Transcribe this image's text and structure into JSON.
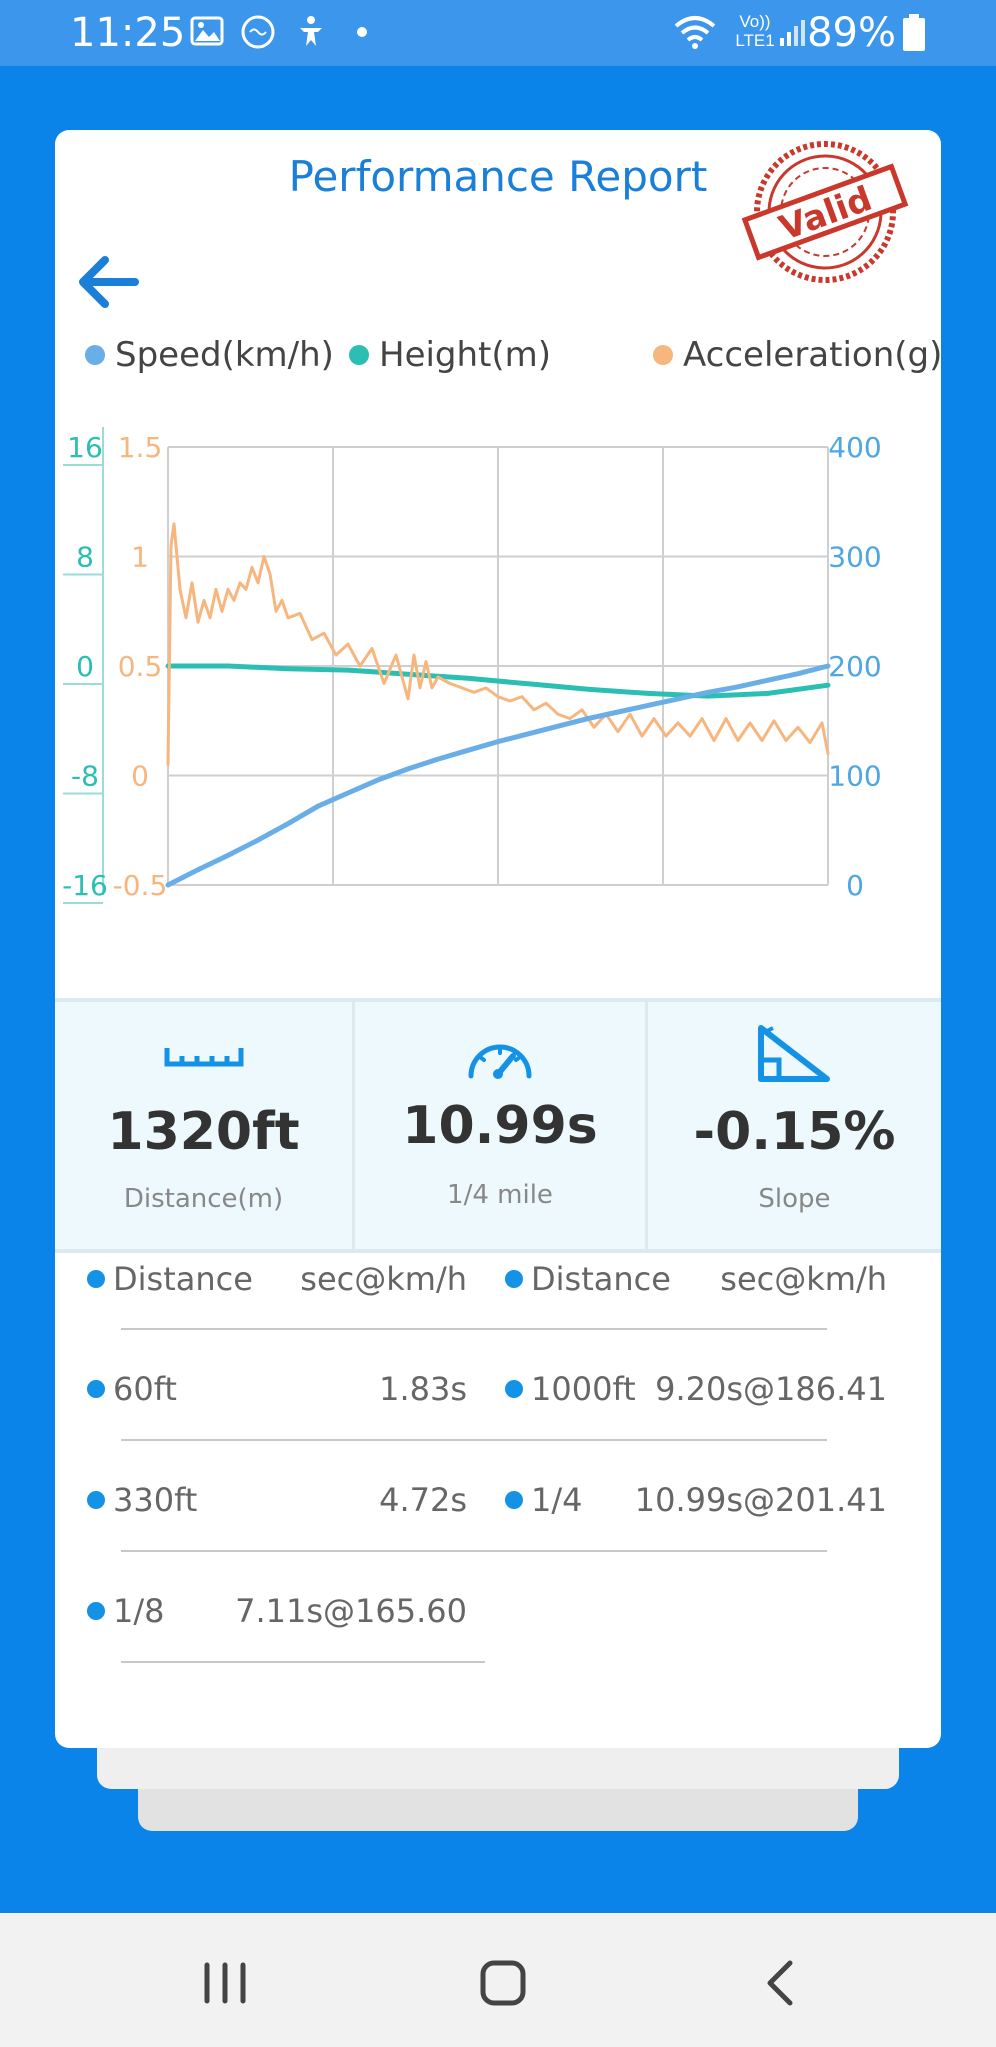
{
  "status": {
    "time": "11:25",
    "battery": "89%",
    "icons": [
      "gallery-icon",
      "sync-icon",
      "accessibility-icon",
      "dot-icon",
      "wifi-icon",
      "volte-icon",
      "signal-icon",
      "battery-icon"
    ],
    "volte_label": "Vo))",
    "lte_label": "LTE1"
  },
  "report": {
    "title": "Performance Report",
    "stamp_text": "Valid",
    "stamp_color": "#c9382b"
  },
  "legend": [
    {
      "label": "Speed(km/h)",
      "color": "#6aaee8"
    },
    {
      "label": "Height(m)",
      "color": "#2bbfb3"
    },
    {
      "label": "Acceleration(g)",
      "color": "#f7b67e"
    }
  ],
  "chart_data": {
    "type": "line",
    "left_axis_height": {
      "ticks": [
        "16",
        "8",
        "0",
        "-8",
        "-16"
      ],
      "range": [
        -16,
        16
      ],
      "color": "#2bbfb3"
    },
    "left_axis_accel": {
      "ticks": [
        "1.5",
        "1",
        "0.5",
        "0",
        "-0.5"
      ],
      "range": [
        -0.5,
        1.5
      ],
      "color": "#f7b67e"
    },
    "right_axis_speed": {
      "ticks": [
        "400",
        "300",
        "200",
        "100",
        "0"
      ],
      "range": [
        0,
        400
      ],
      "color": "#4ea6e3"
    },
    "x_range": [
      0,
      11
    ],
    "grid": true,
    "series": [
      {
        "name": "Speed(km/h)",
        "axis": "speed",
        "color": "#6aaee8",
        "x": [
          0,
          0.5,
          1,
          1.5,
          2,
          2.5,
          3,
          3.5,
          4,
          4.5,
          5,
          5.5,
          6,
          6.5,
          7,
          7.5,
          8,
          8.5,
          9,
          9.5,
          10,
          10.5,
          11
        ],
        "y": [
          0,
          14,
          27,
          41,
          56,
          72,
          84,
          96,
          106,
          115,
          123,
          131,
          138,
          145,
          152,
          158,
          164,
          170,
          176,
          181,
          187,
          193,
          200
        ]
      },
      {
        "name": "Height(m)",
        "axis": "height",
        "color": "#2bbfb3",
        "x": [
          0,
          1,
          2,
          3,
          4,
          5,
          6,
          7,
          8,
          9,
          10,
          11
        ],
        "y": [
          0,
          0,
          -0.2,
          -0.3,
          -0.6,
          -0.9,
          -1.3,
          -1.7,
          -2.0,
          -2.2,
          -2.0,
          -1.4
        ]
      },
      {
        "name": "Acceleration(g)",
        "axis": "accel",
        "color": "#f7b67e",
        "x": [
          0,
          0.05,
          0.1,
          0.2,
          0.3,
          0.4,
          0.5,
          0.6,
          0.7,
          0.8,
          0.9,
          1.0,
          1.1,
          1.2,
          1.3,
          1.4,
          1.5,
          1.6,
          1.7,
          1.8,
          1.9,
          2.0,
          2.2,
          2.4,
          2.6,
          2.8,
          3.0,
          3.2,
          3.4,
          3.6,
          3.8,
          4.0,
          4.1,
          4.2,
          4.3,
          4.4,
          4.5,
          4.7,
          4.9,
          5.1,
          5.3,
          5.5,
          5.7,
          5.9,
          6.1,
          6.3,
          6.5,
          6.7,
          6.9,
          7.1,
          7.3,
          7.5,
          7.7,
          7.9,
          8.1,
          8.3,
          8.5,
          8.7,
          8.9,
          9.1,
          9.3,
          9.5,
          9.7,
          9.9,
          10.1,
          10.3,
          10.5,
          10.7,
          10.9,
          11.0
        ],
        "y": [
          0.05,
          1.05,
          1.15,
          0.85,
          0.72,
          0.88,
          0.7,
          0.8,
          0.72,
          0.85,
          0.75,
          0.85,
          0.8,
          0.88,
          0.85,
          0.95,
          0.88,
          1.0,
          0.92,
          0.75,
          0.8,
          0.72,
          0.74,
          0.62,
          0.65,
          0.55,
          0.6,
          0.5,
          0.58,
          0.42,
          0.55,
          0.35,
          0.55,
          0.4,
          0.52,
          0.4,
          0.45,
          0.42,
          0.4,
          0.38,
          0.4,
          0.36,
          0.34,
          0.36,
          0.3,
          0.33,
          0.28,
          0.26,
          0.3,
          0.22,
          0.28,
          0.2,
          0.28,
          0.18,
          0.26,
          0.18,
          0.24,
          0.18,
          0.26,
          0.16,
          0.26,
          0.16,
          0.24,
          0.16,
          0.25,
          0.16,
          0.22,
          0.15,
          0.24,
          0.1
        ]
      }
    ]
  },
  "stats": [
    {
      "value": "1320ft",
      "label": "Distance(m)",
      "icon": "ruler-icon"
    },
    {
      "value": "10.99s",
      "label": "1/4 mile",
      "icon": "speedometer-icon"
    },
    {
      "value": "-0.15%",
      "label": "Slope",
      "icon": "slope-icon"
    }
  ],
  "splits": {
    "header": {
      "name": "Distance",
      "value": "sec@km/h"
    },
    "left": [
      {
        "name": "60ft",
        "value": "1.83s"
      },
      {
        "name": "330ft",
        "value": "4.72s"
      },
      {
        "name": "1/8",
        "value": "7.11s@165.60"
      }
    ],
    "right": [
      {
        "name": "1000ft",
        "value": "9.20s@186.41"
      },
      {
        "name": "1/4",
        "value": "10.99s@201.41"
      }
    ]
  },
  "nav": {
    "icons": [
      "recent-apps-icon",
      "home-icon",
      "back-nav-icon"
    ]
  }
}
